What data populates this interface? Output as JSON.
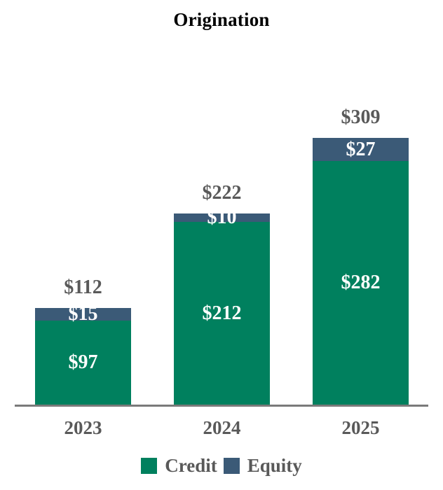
{
  "title": "Origination",
  "chart_data": {
    "type": "bar",
    "stacked": true,
    "title": "Origination",
    "categories": [
      "2023",
      "2024",
      "2025"
    ],
    "series": [
      {
        "name": "Credit",
        "color": "#00805E",
        "values": [
          97,
          212,
          282
        ],
        "labels": [
          "$97",
          "$212",
          "$282"
        ]
      },
      {
        "name": "Equity",
        "color": "#3B5A77",
        "values": [
          15,
          10,
          27
        ],
        "labels": [
          "$15",
          "$10",
          "$27"
        ]
      }
    ],
    "totals": [
      112,
      222,
      309
    ],
    "total_labels": [
      "$112",
      "$222",
      "$309"
    ],
    "value_prefix": "$",
    "ylim": [
      0,
      309
    ],
    "grid": false,
    "y_axis_shown": false,
    "legend_position": "bottom"
  },
  "legend": {
    "items": [
      {
        "label": "Credit",
        "color": "#00805E"
      },
      {
        "label": "Equity",
        "color": "#3B5A77"
      }
    ]
  },
  "colors": {
    "credit": "#00805E",
    "equity": "#3B5A77",
    "text_gray": "#595959",
    "bar_value_text": "#FFFFFF",
    "axis_line": "#7A7A7A",
    "title_text": "#000000",
    "background": "#FFFFFF"
  }
}
